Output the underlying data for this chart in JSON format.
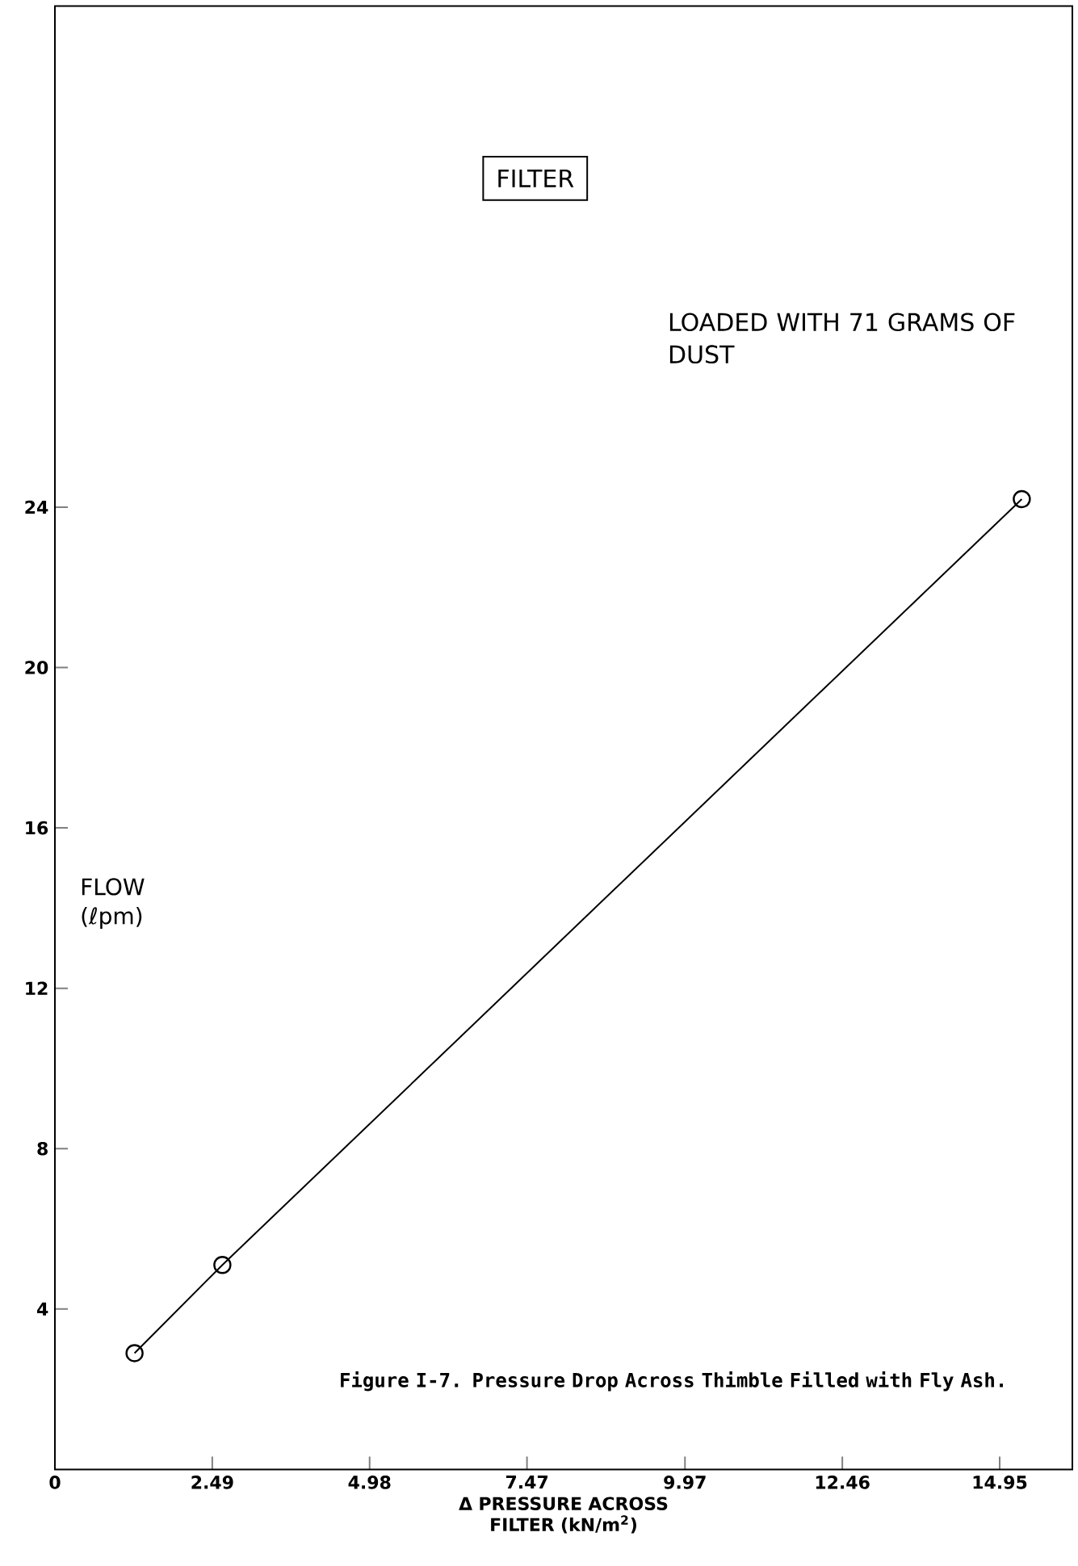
{
  "chart_data": {
    "type": "line",
    "title": "FILTER",
    "xlabel": "Δ PRESSURE ACROSS FILTER (kN/m$^{2}$)",
    "ylabel": "FLOW (ℓpm)",
    "x": [
      1.26,
      2.65,
      15.3
    ],
    "values": [
      2.9,
      5.1,
      24.2
    ],
    "color": "#000000",
    "marker": "circle",
    "line_style": "solid",
    "grid": false,
    "xlim": [
      0,
      16.1
    ],
    "ylim": [
      0,
      36.5
    ],
    "xticks": [
      0,
      2.49,
      4.98,
      7.47,
      9.97,
      12.46,
      14.95
    ],
    "yticks": [
      4,
      8,
      12,
      16,
      20,
      24
    ],
    "annotations": [
      "LOADED WITH 71 GRAMS OF DUST",
      "Figure I-7.  Pressure Drop Across Thimble Filled with Fly Ash."
    ]
  }
}
